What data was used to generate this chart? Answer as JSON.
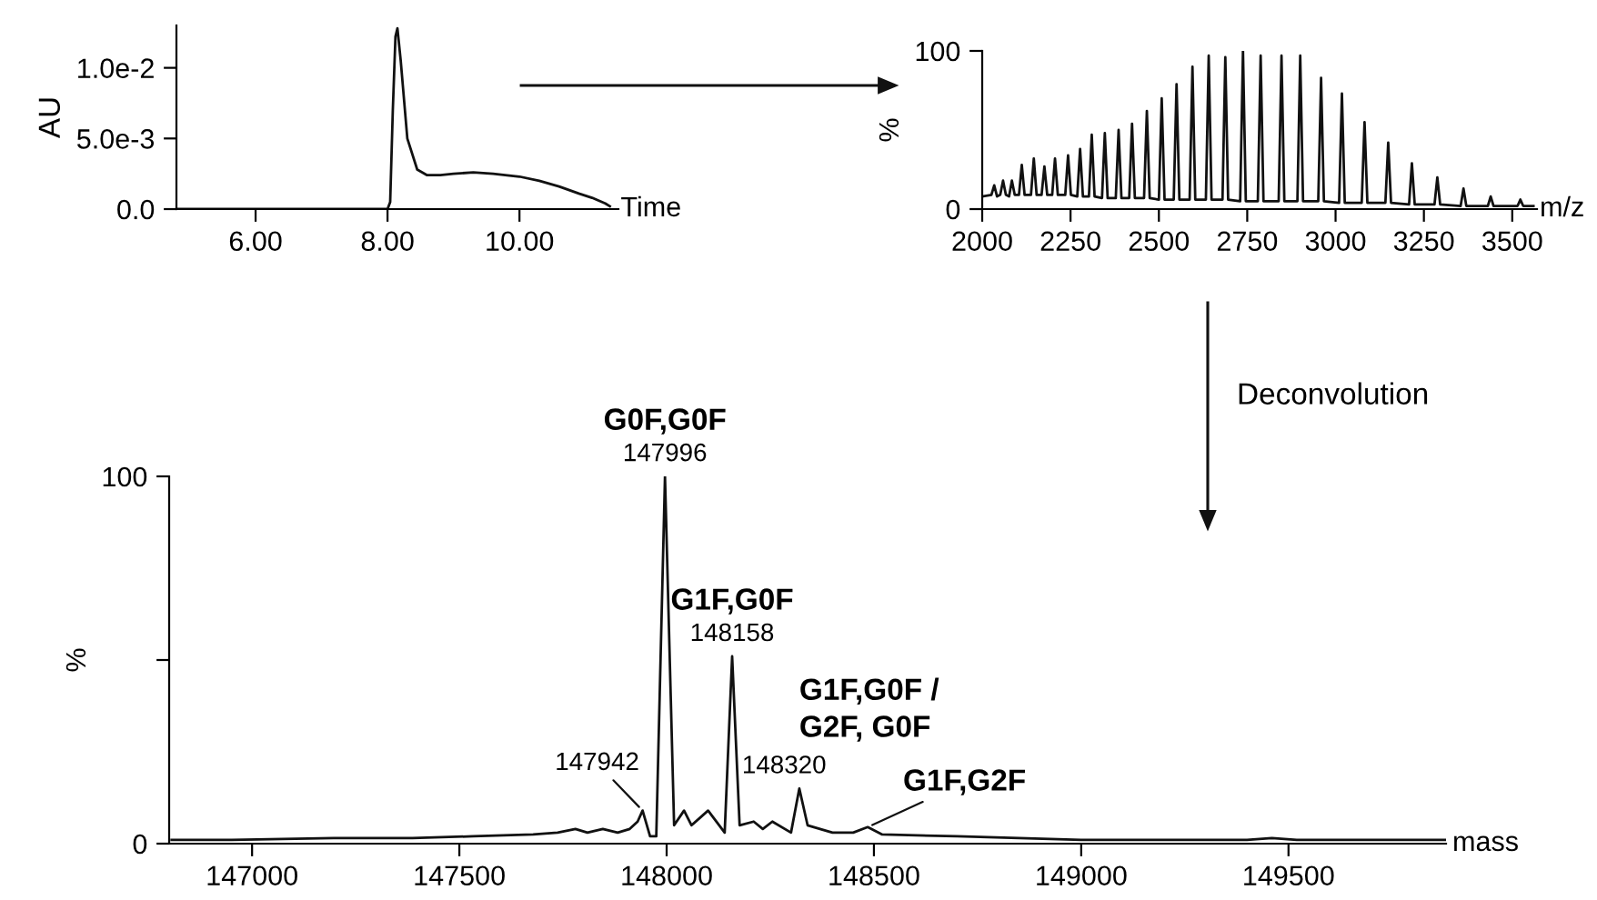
{
  "chart_data": [
    {
      "type": "line",
      "xlabel": "Time",
      "ylabel": "AU",
      "color": "#111111",
      "x": [
        4.8,
        8.0,
        8.04,
        8.08,
        8.12,
        8.15,
        8.2,
        8.3,
        8.45,
        8.6,
        8.8,
        9.0,
        9.3,
        9.6,
        10.0,
        10.3,
        10.6,
        10.9,
        11.1,
        11.3,
        11.37
      ],
      "values": [
        0,
        0,
        0.0005,
        0.007,
        0.0122,
        0.0128,
        0.0105,
        0.005,
        0.0028,
        0.0024,
        0.0024,
        0.0025,
        0.0026,
        0.0025,
        0.0023,
        0.002,
        0.0016,
        0.0011,
        0.0008,
        0.0004,
        0.0002
      ],
      "xlim": [
        4.8,
        11.5
      ],
      "ylim": [
        0,
        0.013
      ],
      "xticks": [
        {
          "value": 6,
          "label": "6.00"
        },
        {
          "value": 8,
          "label": "8.00"
        },
        {
          "value": 10,
          "label": "10.00"
        }
      ],
      "yticks": [
        {
          "value": 0,
          "label": "0.0"
        },
        {
          "value": 0.005,
          "label": "5.0e-3"
        },
        {
          "value": 0.01,
          "label": "1.0e-2"
        }
      ],
      "grid": false,
      "legend": false
    },
    {
      "type": "line",
      "xlabel": "m/z",
      "ylabel": "%",
      "color": "#111111",
      "annotations": [
        "Deconvolution"
      ],
      "x": [
        2000,
        2026,
        2034,
        2042,
        2051,
        2059,
        2067,
        2076,
        2084,
        2092,
        2104,
        2112,
        2120,
        2138,
        2146,
        2154,
        2168,
        2176,
        2184,
        2198,
        2206,
        2214,
        2235,
        2243,
        2251,
        2269,
        2277,
        2285,
        2302,
        2310,
        2318,
        2339,
        2347,
        2355,
        2378,
        2386,
        2394,
        2416,
        2424,
        2432,
        2458,
        2466,
        2474,
        2500,
        2508,
        2516,
        2542,
        2550,
        2558,
        2587,
        2595,
        2603,
        2633,
        2641,
        2649,
        2680,
        2688,
        2696,
        2730,
        2738,
        2746,
        2780,
        2788,
        2796,
        2839,
        2847,
        2855,
        2892,
        2900,
        2908,
        2951,
        2959,
        2967,
        3010,
        3018,
        3026,
        3074,
        3082,
        3090,
        3141,
        3149,
        3157,
        3208,
        3216,
        3224,
        3280,
        3288,
        3296,
        3354,
        3362,
        3370,
        3431,
        3439,
        3447,
        3515,
        3523,
        3531,
        3560
      ],
      "values": [
        8,
        9,
        15,
        8,
        9,
        18,
        9,
        8,
        18,
        9,
        9,
        28,
        9,
        9,
        32,
        9,
        9,
        27,
        9,
        9,
        32,
        9,
        9,
        34,
        9,
        8,
        38,
        8,
        8,
        47,
        8,
        7,
        48,
        7,
        7,
        50,
        7,
        7,
        54,
        7,
        7,
        62,
        7,
        6,
        70,
        6,
        6,
        79,
        6,
        6,
        90,
        6,
        6,
        97,
        6,
        6,
        96,
        6,
        5,
        100,
        5,
        5,
        97,
        5,
        5,
        97,
        5,
        5,
        97,
        5,
        5,
        83,
        5,
        4,
        73,
        4,
        4,
        55,
        4,
        4,
        42,
        4,
        3,
        29,
        3,
        3,
        20,
        3,
        2,
        13,
        2,
        2,
        8,
        2,
        2,
        6,
        2,
        2
      ],
      "xlim": [
        2000,
        3570
      ],
      "ylim": [
        0,
        100
      ],
      "xticks": [
        2000,
        2250,
        2500,
        2750,
        3000,
        3250,
        3500
      ],
      "yticks": [
        0,
        100
      ],
      "grid": false,
      "legend": false
    },
    {
      "type": "line",
      "xlabel": "mass",
      "ylabel": "%",
      "color": "#111111",
      "x": [
        146806,
        146951,
        147197,
        147387,
        147533,
        147678,
        147737,
        147780,
        147809,
        147846,
        147882,
        147911,
        147930,
        147942,
        147960,
        147975,
        147996,
        148018,
        148042,
        148060,
        148100,
        148140,
        148158,
        148176,
        148210,
        148232,
        148255,
        148300,
        148320,
        148340,
        148400,
        148450,
        148485,
        148520,
        148700,
        149000,
        149400,
        149460,
        149520,
        149880
      ],
      "values": [
        1,
        1,
        1.5,
        1.5,
        2,
        2.5,
        3,
        4,
        3,
        4,
        3,
        4,
        6,
        9,
        2,
        2,
        100,
        5,
        9,
        5,
        9,
        3,
        51,
        5,
        6,
        4,
        6,
        3,
        15,
        5,
        3,
        3,
        4.5,
        2.5,
        2,
        1,
        1,
        1.5,
        1,
        1
      ],
      "annotations": [
        {
          "text": "G0F,G0F",
          "x": 147996,
          "y": 100
        },
        {
          "text": "147996",
          "x": 147996,
          "y": 100
        },
        {
          "text": "G1F,G0F",
          "x": 148158,
          "y": 51
        },
        {
          "text": "148158",
          "x": 148158,
          "y": 51
        },
        {
          "text": "G1F,G0F /\nG2F, G0F",
          "x": 148320,
          "y": 15
        },
        {
          "text": "148320",
          "x": 148320,
          "y": 15
        },
        {
          "text": "G1F,G2F",
          "x": 148485,
          "y": 4.5
        },
        {
          "text": "147942",
          "x": 147942,
          "y": 9
        }
      ],
      "xlim": [
        146800,
        149880
      ],
      "ylim": [
        0,
        100
      ],
      "xticks": [
        147000,
        147500,
        148000,
        148500,
        149000,
        149500
      ],
      "yticks": [
        0,
        {
          "value": 50,
          "label": null
        },
        100
      ],
      "grid": false,
      "legend": false
    }
  ]
}
